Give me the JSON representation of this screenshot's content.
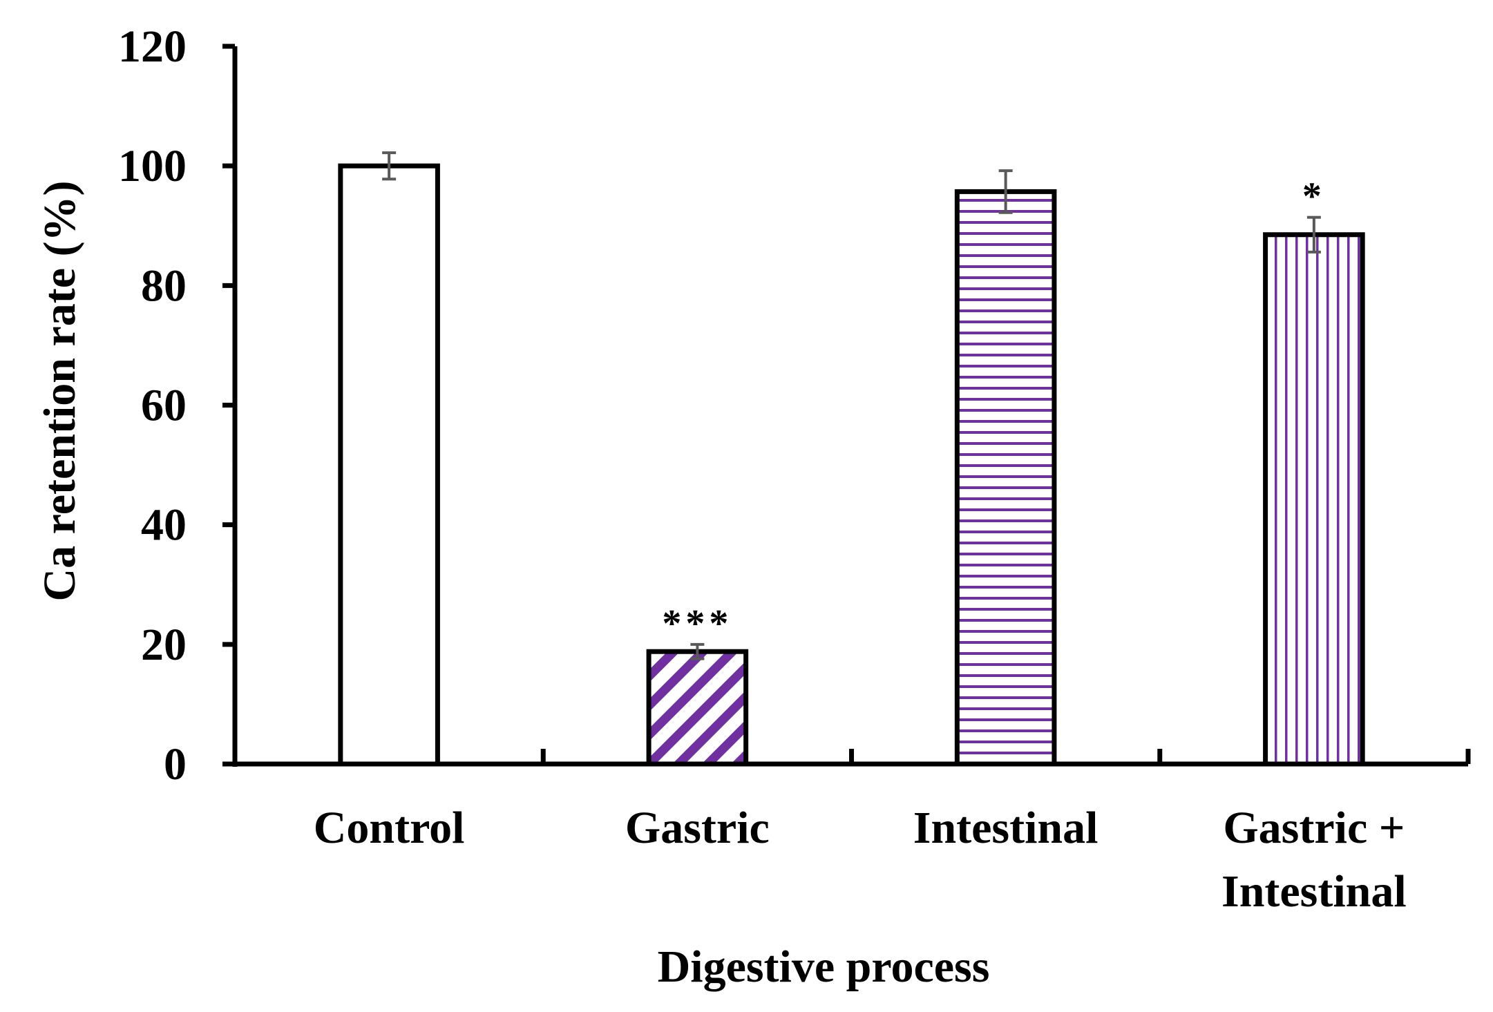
{
  "chart_data": {
    "type": "bar",
    "title": "",
    "xlabel": "Digestive process",
    "ylabel": "Ca retention rate (%)",
    "ylim": [
      0,
      120
    ],
    "yticks": [
      "0",
      "20",
      "40",
      "60",
      "80",
      "100",
      "120"
    ],
    "grid": false,
    "categories": [
      [
        "Control"
      ],
      [
        "Gastric"
      ],
      [
        "Intestinal"
      ],
      [
        "Gastric +",
        "Intestinal"
      ]
    ],
    "values": [
      100,
      18.8,
      95.7,
      88.5
    ],
    "errors": [
      2.2,
      1.2,
      3.5,
      2.9
    ],
    "significance": [
      "",
      "***",
      "",
      "*"
    ],
    "patterns": [
      "none",
      "diagonal",
      "horizontal",
      "vertical"
    ]
  },
  "colors": {
    "axis": "#000000",
    "bar_outline": "#000000",
    "hatch": "#7030a0",
    "error_bar": "#595959",
    "background": "#ffffff"
  }
}
